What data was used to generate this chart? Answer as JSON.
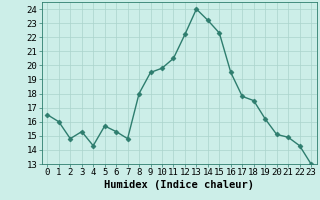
{
  "x": [
    0,
    1,
    2,
    3,
    4,
    5,
    6,
    7,
    8,
    9,
    10,
    11,
    12,
    13,
    14,
    15,
    16,
    17,
    18,
    19,
    20,
    21,
    22,
    23
  ],
  "y": [
    16.5,
    16.0,
    14.8,
    15.3,
    14.3,
    15.7,
    15.3,
    14.8,
    18.0,
    19.5,
    19.8,
    20.5,
    22.2,
    24.0,
    23.2,
    22.3,
    19.5,
    17.8,
    17.5,
    16.2,
    15.1,
    14.9,
    14.3,
    13.0
  ],
  "line_color": "#2e7d6e",
  "marker": "D",
  "marker_size": 2.5,
  "bg_color": "#cceee8",
  "grid_color": "#aad4cc",
  "xlabel": "Humidex (Indice chaleur)",
  "ylim": [
    13,
    24.5
  ],
  "yticks": [
    13,
    14,
    15,
    16,
    17,
    18,
    19,
    20,
    21,
    22,
    23,
    24
  ],
  "xtick_labels": [
    "0",
    "1",
    "2",
    "3",
    "4",
    "5",
    "6",
    "7",
    "8",
    "9",
    "10",
    "11",
    "12",
    "13",
    "14",
    "15",
    "16",
    "17",
    "18",
    "19",
    "20",
    "21",
    "22",
    "23"
  ],
  "xlabel_fontsize": 7.5,
  "tick_fontsize": 6.5,
  "line_width": 1.0
}
